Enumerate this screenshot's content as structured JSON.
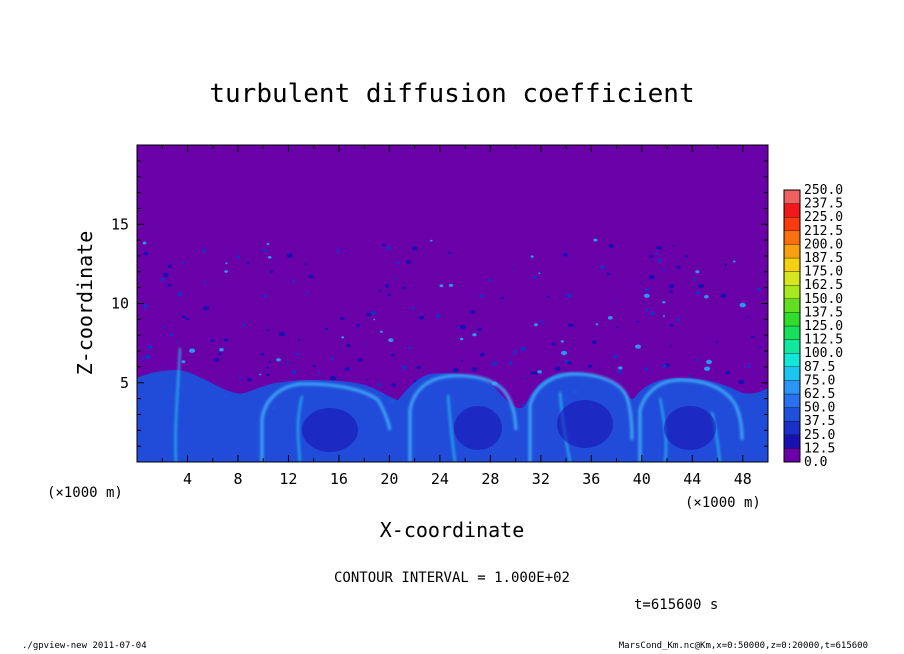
{
  "chart_data": {
    "type": "heatmap",
    "title": "turbulent diffusion coefficient",
    "xlabel": "X-coordinate",
    "ylabel": "Z-coordinate",
    "x_units": "(×1000 m)",
    "y_units": "(×1000 m)",
    "xlim": [
      0,
      50
    ],
    "ylim": [
      0,
      20
    ],
    "x_ticks": [
      4,
      8,
      12,
      16,
      20,
      24,
      28,
      32,
      36,
      40,
      44,
      48
    ],
    "y_ticks": [
      5,
      10,
      15
    ],
    "colorbar": {
      "levels": [
        "0.0",
        "12.5",
        "25.0",
        "37.5",
        "50.0",
        "62.5",
        "75.0",
        "87.5",
        "100.0",
        "112.5",
        "125.0",
        "137.5",
        "150.0",
        "162.5",
        "175.0",
        "187.5",
        "200.0",
        "212.5",
        "225.0",
        "237.5",
        "250.0"
      ],
      "colors": [
        "#6a00a8",
        "#1a0fb0",
        "#1830c8",
        "#1e50dc",
        "#2a70ee",
        "#2c94f4",
        "#1cc4f0",
        "#14e6d8",
        "#10e8a0",
        "#18e05a",
        "#30dc2c",
        "#60e020",
        "#a8e820",
        "#d8e620",
        "#f4d010",
        "#f8a010",
        "#f87010",
        "#f83c10",
        "#f01818",
        "#f06060"
      ]
    },
    "annotations": {
      "contour_interval": "CONTOUR INTERVAL = 1.000E+02",
      "time": "t=615600 s"
    },
    "background_color": "#6a00a8"
  },
  "footer": {
    "left": "./gpview-new  2011-07-04",
    "right": "MarsCond_Km.nc@Km,x=0:50000,z=0:20000,t=615600"
  }
}
